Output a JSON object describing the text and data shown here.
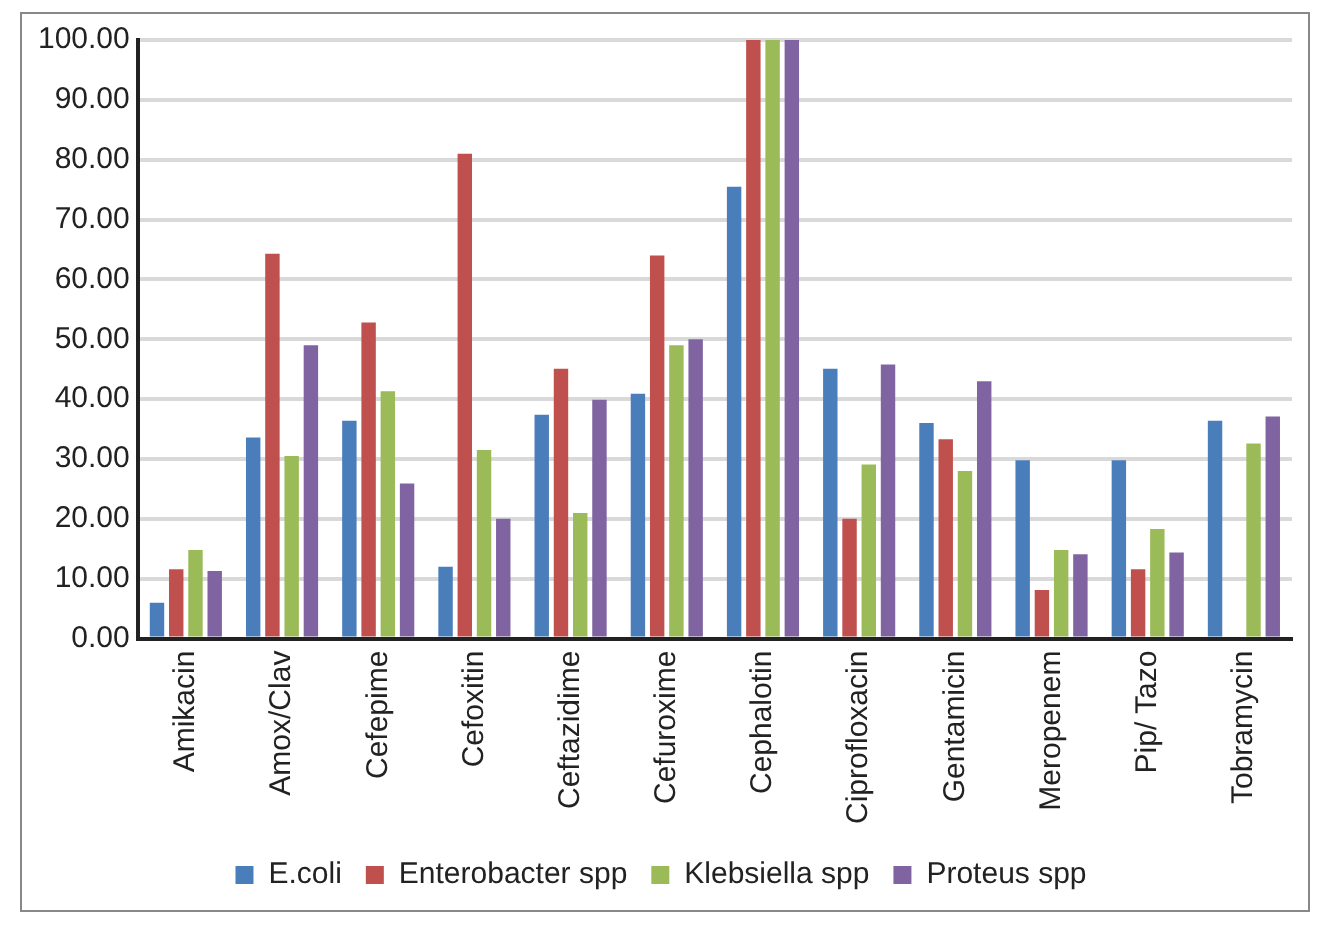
{
  "chart_data": {
    "type": "bar",
    "categories": [
      "Amikacin",
      "Amox/Clav",
      "Cefepime",
      "Cefoxitin",
      "Ceftazidime",
      "Cefuroxime",
      "Cephalotin",
      "Ciprofloxacin",
      "Gentamicin",
      "Meropenem",
      "Pip/ Tazo",
      "Tobramycin"
    ],
    "series": [
      {
        "name": "E.coli",
        "color": "#4a7ebb",
        "values": [
          6.0,
          33.6,
          36.4,
          12.0,
          37.4,
          40.9,
          75.5,
          45.1,
          36.0,
          29.8,
          29.8,
          36.4
        ]
      },
      {
        "name": "Enterobacter spp",
        "color": "#c0504d",
        "values": [
          11.6,
          64.3,
          52.8,
          81.0,
          45.1,
          64.0,
          100,
          20.0,
          33.3,
          8.1,
          11.6,
          null
        ]
      },
      {
        "name": "Klebsiella spp",
        "color": "#9bbb59",
        "values": [
          14.8,
          30.5,
          41.3,
          31.5,
          21.0,
          49.0,
          100,
          29.1,
          28.0,
          14.8,
          18.3,
          32.6
        ]
      },
      {
        "name": "Proteus spp",
        "color": "#8064a2",
        "values": [
          11.3,
          49.0,
          25.9,
          20.0,
          39.9,
          50.0,
          100,
          45.8,
          43.0,
          14.1,
          14.4,
          37.1
        ]
      }
    ],
    "ylim": [
      0,
      100
    ],
    "yticks": [
      {
        "value": 0,
        "label": "0.00"
      },
      {
        "value": 10,
        "label": "10.00"
      },
      {
        "value": 20,
        "label": "20.00"
      },
      {
        "value": 30,
        "label": "30.00"
      },
      {
        "value": 40,
        "label": "40.00"
      },
      {
        "value": 50,
        "label": "50.00"
      },
      {
        "value": 60,
        "label": "60.00"
      },
      {
        "value": 70,
        "label": "70.00"
      },
      {
        "value": 80,
        "label": "80.00"
      },
      {
        "value": 90,
        "label": "90.00"
      },
      {
        "value": 100,
        "label": "100.00"
      }
    ],
    "grid": "y",
    "legend": "bottom"
  }
}
